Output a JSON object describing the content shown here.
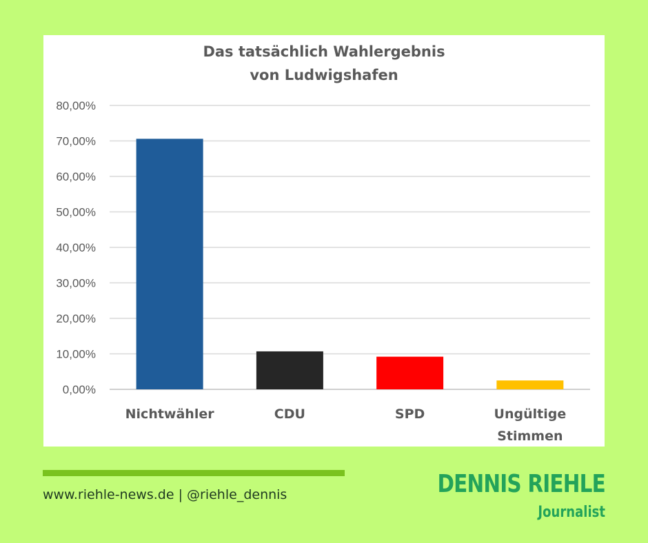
{
  "chart_data": {
    "type": "bar",
    "title_lines": [
      "Das tatsächlich Wahlergebnis",
      "von Ludwigshafen"
    ],
    "categories": [
      [
        "Nichtwähler"
      ],
      [
        "CDU"
      ],
      [
        "SPD"
      ],
      [
        "Ungültige",
        "Stimmen"
      ]
    ],
    "values": [
      70.6,
      10.7,
      9.2,
      2.5
    ],
    "colors": [
      "#1f5c99",
      "#262626",
      "#ff0000",
      "#ffc000"
    ],
    "ylim": [
      0,
      80
    ],
    "yticks": [
      "0,00%",
      "10,00%",
      "20,00%",
      "30,00%",
      "40,00%",
      "50,00%",
      "60,00%",
      "70,00%",
      "80,00%"
    ],
    "grid": true,
    "legend": "none"
  },
  "footer": {
    "website": "www.riehle-news.de",
    "separator": "|",
    "handle": "@riehle_dennis"
  },
  "brand": {
    "name": "DENNIS RIEHLE",
    "role": "Journalist",
    "color": "#23a35a",
    "accent": "#7ac21e"
  }
}
